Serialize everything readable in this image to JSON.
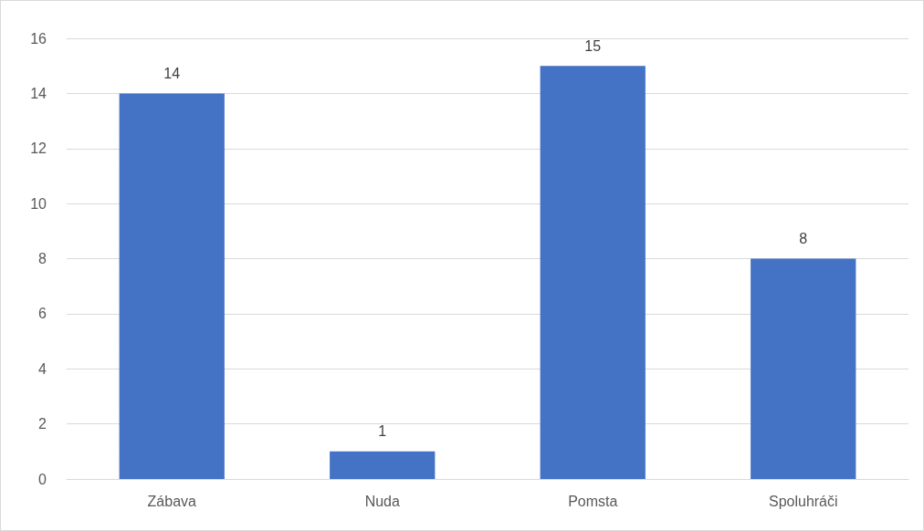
{
  "chart_data": {
    "type": "bar",
    "categories": [
      "Zábava",
      "Nuda",
      "Pomsta",
      "Spoluhráči"
    ],
    "values": [
      14,
      1,
      15,
      8
    ],
    "color": "#4472c4",
    "ylim": [
      0,
      16
    ],
    "yticks": [
      0,
      2,
      4,
      6,
      8,
      10,
      12,
      14,
      16
    ],
    "grid": "y",
    "data_labels": true
  }
}
